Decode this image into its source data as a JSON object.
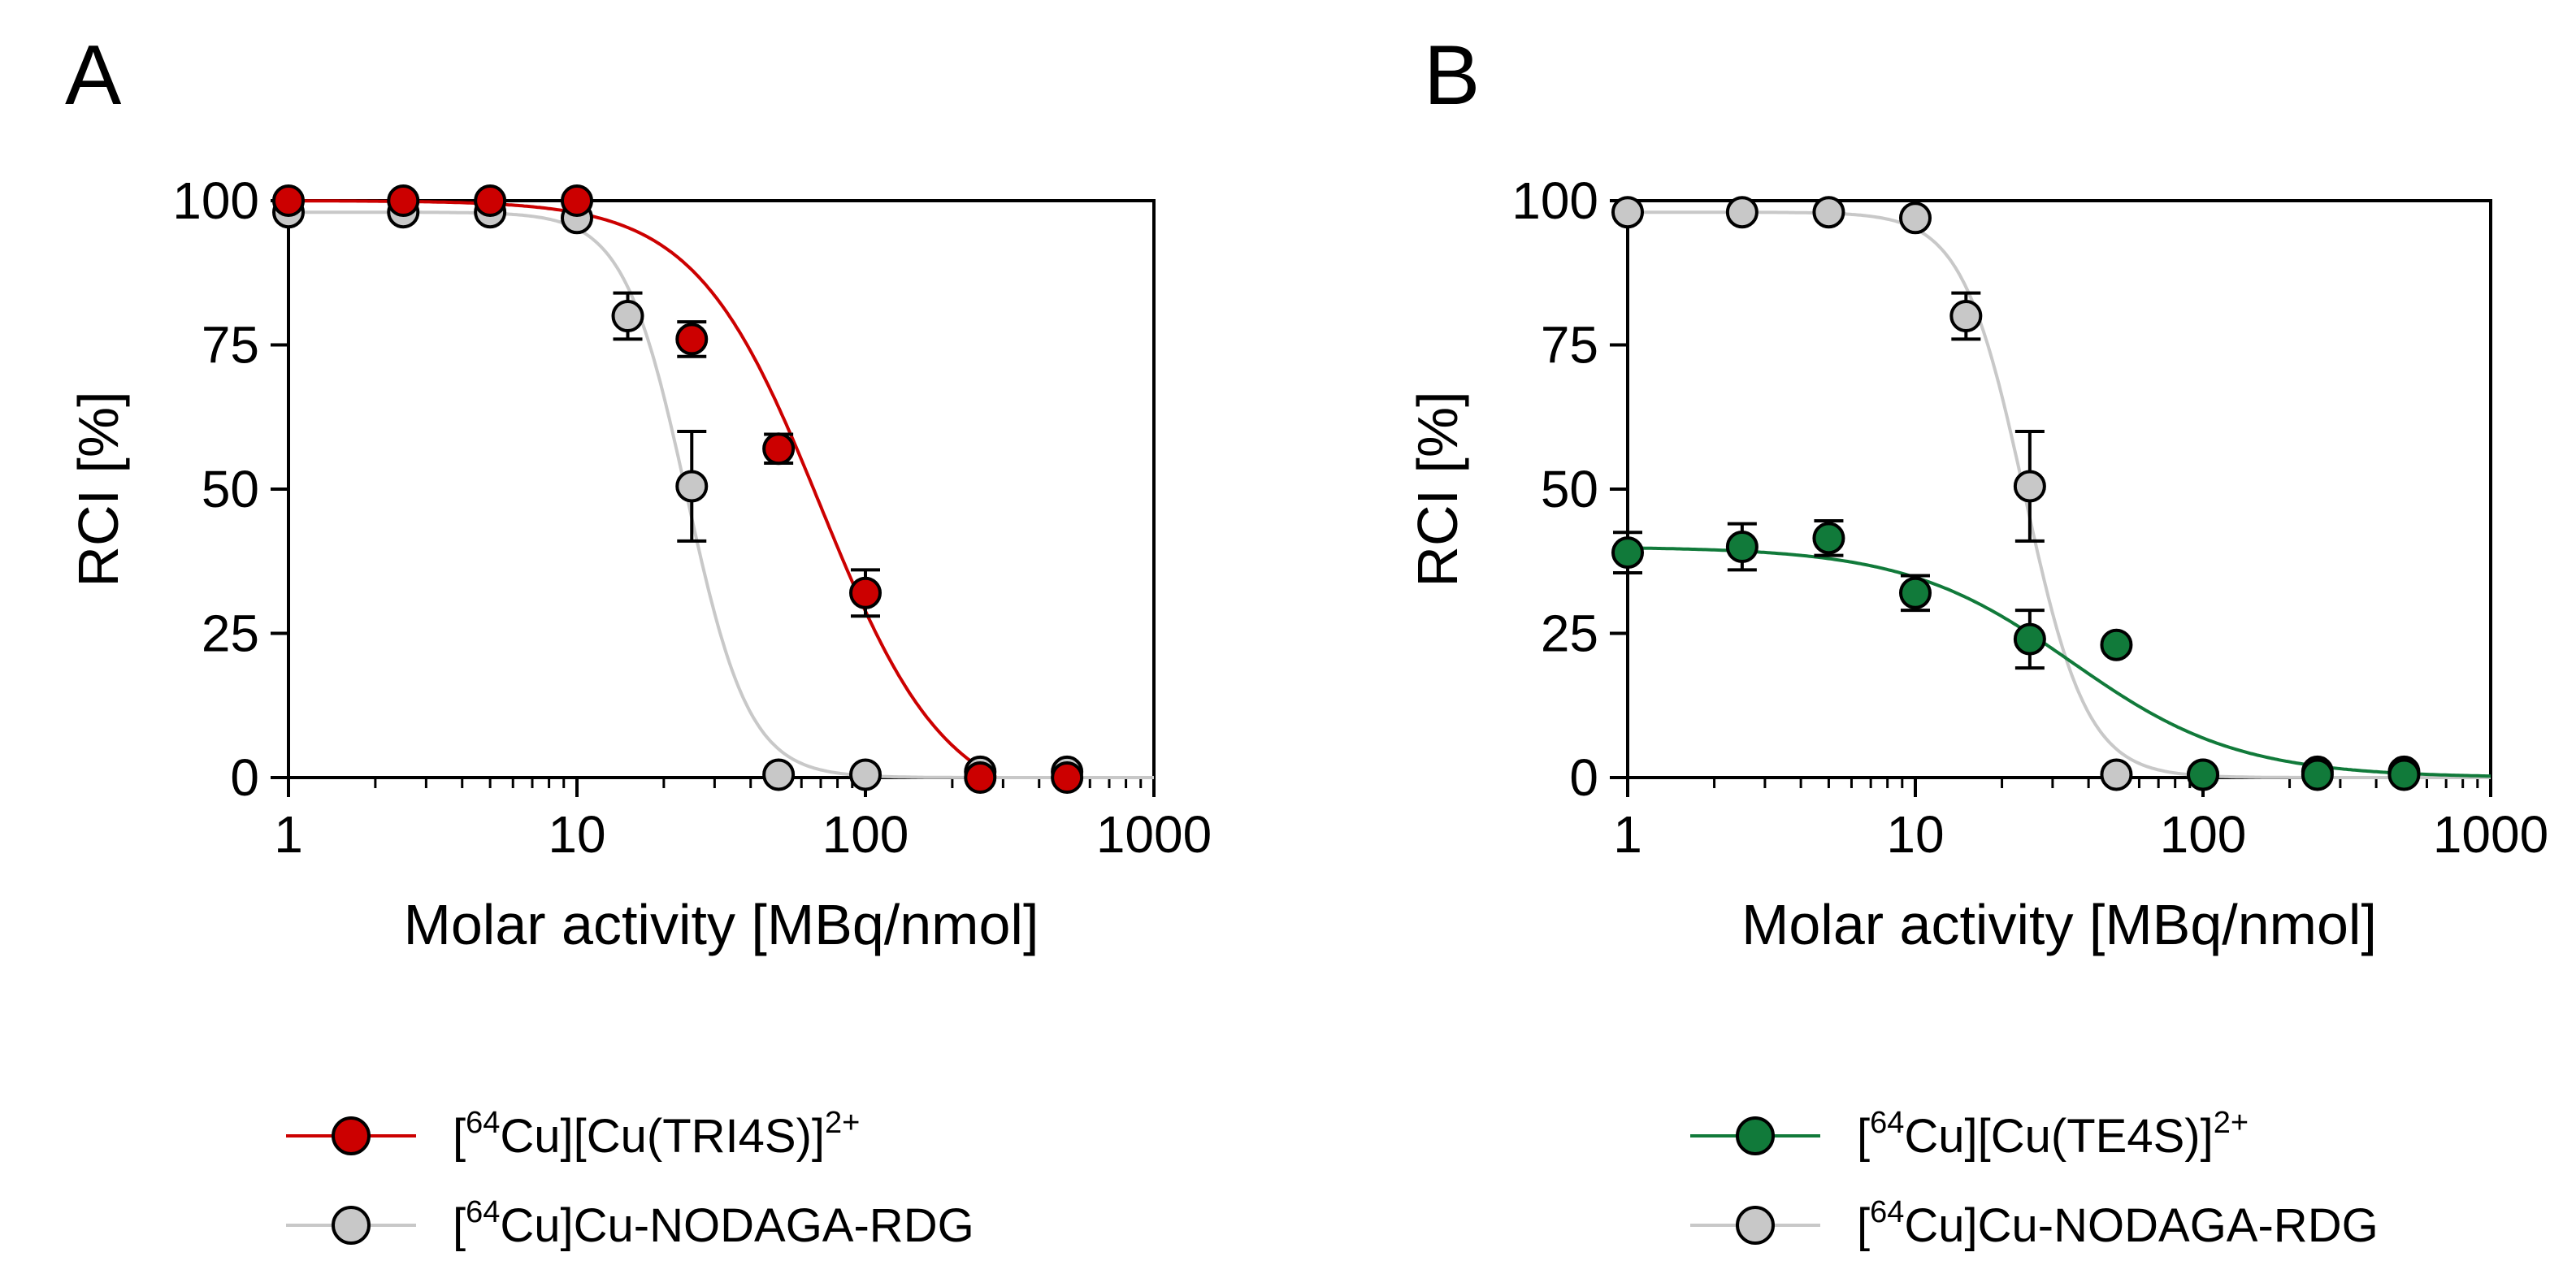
{
  "figure": {
    "panels": [
      {
        "letter": "A",
        "ylabel": "RCI [%]",
        "xlabel": "Molar activity [MBq/nmol]",
        "legend": [
          {
            "pre": "[",
            "sup1": "64",
            "mid": "Cu][Cu(TRI4S)]",
            "sup2": "2+",
            "color": "#cc0000"
          },
          {
            "pre": "[",
            "sup1": "64",
            "mid": "Cu]Cu-NODAGA-RDG",
            "sup2": "",
            "color": "#c8c8c8"
          }
        ]
      },
      {
        "letter": "B",
        "ylabel": "RCI [%]",
        "xlabel": "Molar activity [MBq/nmol]",
        "legend": [
          {
            "pre": "[",
            "sup1": "64",
            "mid": "Cu][Cu(TE4S)]",
            "sup2": "2+",
            "color": "#117a3a"
          },
          {
            "pre": "[",
            "sup1": "64",
            "mid": "Cu]Cu-NODAGA-RDG",
            "sup2": "",
            "color": "#c8c8c8"
          }
        ]
      }
    ]
  },
  "chart_data": [
    {
      "type": "scatter",
      "title": "A",
      "xlabel": "Molar activity [MBq/nmol]",
      "ylabel": "RCI [%]",
      "xscale": "log",
      "xlim": [
        1,
        1000
      ],
      "ylim": [
        0,
        100
      ],
      "xticks": [
        1,
        10,
        100,
        1000
      ],
      "xtick_labels": [
        "1",
        "10",
        "100",
        "1000"
      ],
      "yticks": [
        0,
        25,
        50,
        75,
        100
      ],
      "ytick_labels": [
        "0",
        "25",
        "50",
        "75",
        "100"
      ],
      "series": [
        {
          "name": "[64Cu]Cu-NODAGA-RDG",
          "color": "#c8c8c8",
          "x": [
            1,
            2.5,
            5,
            10,
            15,
            25,
            50,
            100,
            250,
            500
          ],
          "y": [
            98,
            98,
            98,
            97,
            80,
            50.5,
            0.5,
            0.5,
            1,
            1
          ],
          "err": [
            0,
            0,
            0,
            0,
            4,
            9.5,
            0,
            0,
            0,
            0
          ],
          "fit": {
            "top": 98,
            "bottom": 0,
            "ec50": 24,
            "hill": 4
          }
        },
        {
          "name": "[64Cu][Cu(TRI4S)]2+",
          "color": "#cc0000",
          "x": [
            1,
            2.5,
            5,
            10,
            25,
            50,
            100,
            250,
            500
          ],
          "y": [
            100,
            100,
            100,
            100,
            76,
            57,
            32,
            0,
            0
          ],
          "err": [
            0,
            0,
            0,
            0,
            3,
            2.5,
            4,
            0,
            0
          ],
          "fit": {
            "top": 100,
            "bottom": -6,
            "ec50": 70,
            "hill": 2
          }
        }
      ],
      "legend_position": "bottom"
    },
    {
      "type": "scatter",
      "title": "B",
      "xlabel": "Molar activity [MBq/nmol]",
      "ylabel": "RCI [%]",
      "xscale": "log",
      "xlim": [
        1,
        1000
      ],
      "ylim": [
        0,
        100
      ],
      "xticks": [
        1,
        10,
        100,
        1000
      ],
      "xtick_labels": [
        "1",
        "10",
        "100",
        "1000"
      ],
      "yticks": [
        0,
        25,
        50,
        75,
        100
      ],
      "ytick_labels": [
        "0",
        "25",
        "50",
        "75",
        "100"
      ],
      "series": [
        {
          "name": "[64Cu]Cu-NODAGA-RDG",
          "color": "#c8c8c8",
          "x": [
            1,
            2.5,
            5,
            10,
            15,
            25,
            50,
            100,
            250,
            500
          ],
          "y": [
            98,
            98,
            98,
            97,
            80,
            50.5,
            0.5,
            0.5,
            1,
            1
          ],
          "err": [
            0,
            0,
            0,
            0,
            4,
            9.5,
            0,
            0,
            0,
            0
          ],
          "fit": {
            "top": 98,
            "bottom": 0,
            "ec50": 24,
            "hill": 4
          }
        },
        {
          "name": "[64Cu][Cu(TE4S)]2+",
          "color": "#117a3a",
          "x": [
            1,
            2.5,
            5,
            10,
            25,
            50,
            100,
            250,
            500
          ],
          "y": [
            39,
            40,
            41.5,
            32,
            24,
            23,
            0.5,
            0.5,
            0.5
          ],
          "err": [
            3.5,
            4,
            3,
            3,
            5,
            0,
            0,
            0,
            0
          ],
          "fit": {
            "top": 40,
            "bottom": 0,
            "ec50": 35,
            "hill": 1.5
          }
        }
      ],
      "legend_position": "bottom"
    }
  ]
}
